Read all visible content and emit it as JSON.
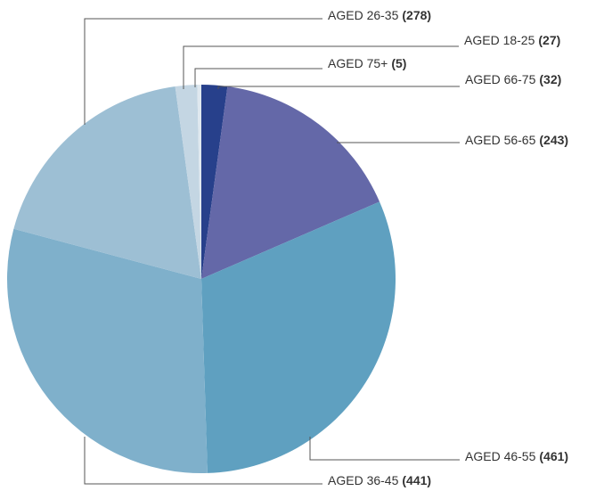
{
  "chart_data": {
    "type": "pie",
    "categories": [
      "AGED 66-75",
      "AGED 56-65",
      "AGED 46-55",
      "AGED 36-45",
      "AGED 26-35",
      "AGED 18-25",
      "AGED 75+"
    ],
    "values": [
      32,
      243,
      461,
      441,
      278,
      27,
      5
    ],
    "value_labels": [
      "(32)",
      "(243)",
      "(461)",
      "(441)",
      "(278)",
      "(27)",
      "(5)"
    ],
    "colors": [
      "#27408b",
      "#6468a8",
      "#5fa0c0",
      "#7fb0cb",
      "#9dbfd4",
      "#c4d6e3",
      "#dfe8ef"
    ]
  }
}
